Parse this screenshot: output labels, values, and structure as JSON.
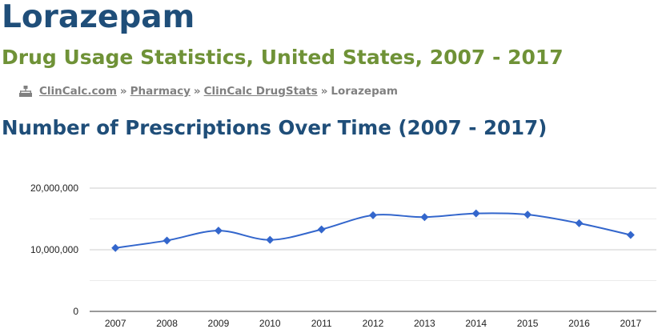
{
  "header": {
    "title": "Lorazepam",
    "subtitle": "Drug Usage Statistics, United States, 2007 - 2017"
  },
  "breadcrumb": {
    "icon": "sitemap-icon",
    "items": [
      {
        "label": "ClinCalc.com",
        "link": true
      },
      {
        "label": "Pharmacy",
        "link": true
      },
      {
        "label": "ClinCalc DrugStats",
        "link": true
      },
      {
        "label": "Lorazepam",
        "link": false
      }
    ],
    "separator": "»"
  },
  "section": {
    "title": "Number of Prescriptions Over Time (2007 - 2017)"
  },
  "colors": {
    "title": "#1f4e79",
    "subtitle": "#6f9237",
    "series": "#3366cc",
    "gridline": "#cccccc",
    "baseline": "#333333"
  },
  "chart_data": {
    "type": "line",
    "categories": [
      "2007",
      "2008",
      "2009",
      "2010",
      "2011",
      "2012",
      "2013",
      "2014",
      "2015",
      "2016",
      "2017"
    ],
    "series": [
      {
        "values": [
          10300000,
          11500000,
          13100000,
          11600000,
          13300000,
          15600000,
          15300000,
          15900000,
          15700000,
          14300000,
          12400000
        ]
      }
    ],
    "yticks": [
      0,
      10000000,
      20000000
    ],
    "ytick_labels": [
      "0",
      "10,000,000",
      "20,000,000"
    ],
    "ylim": [
      0,
      20000000
    ],
    "grid": true,
    "marker": "diamond",
    "smooth": true
  }
}
